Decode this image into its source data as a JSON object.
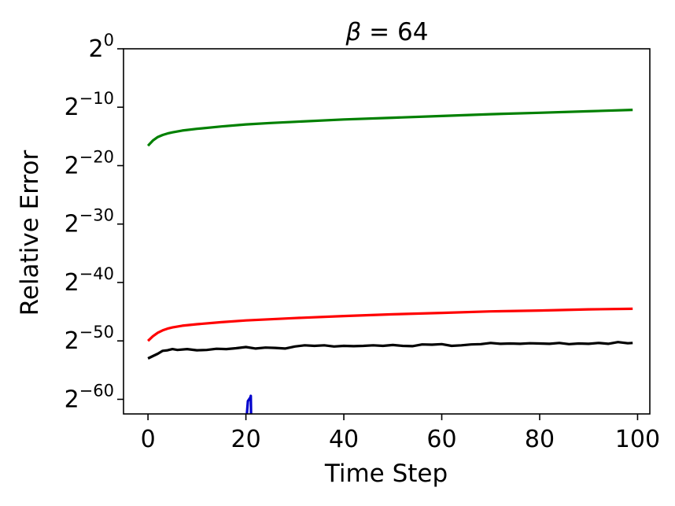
{
  "chart_data": {
    "type": "line",
    "title_symbol": "β",
    "title_rest": " = 64",
    "xlabel": "Time Step",
    "ylabel": "Relative Error",
    "xlim": [
      -5,
      102.5
    ],
    "ylim_log2": [
      -62.5,
      0
    ],
    "x_ticks": [
      0,
      20,
      40,
      60,
      80,
      100
    ],
    "x_tick_labels": [
      "0",
      "20",
      "40",
      "60",
      "80",
      "100"
    ],
    "y_ticks_log2": [
      0,
      -10,
      -20,
      -30,
      -40,
      -50,
      -60
    ],
    "y_tick_base": "2",
    "y_tick_exponents": [
      "0",
      "−10",
      "−20",
      "−30",
      "−40",
      "−50",
      "−60"
    ],
    "grid": false,
    "legend": "none",
    "series": [
      {
        "color": "#008000",
        "x": [
          0,
          1,
          2,
          3,
          4,
          5,
          7,
          10,
          15,
          20,
          25,
          30,
          40,
          50,
          60,
          70,
          80,
          90,
          99
        ],
        "log2y": [
          -16.6,
          -15.7,
          -15.1,
          -14.75,
          -14.5,
          -14.3,
          -14.0,
          -13.7,
          -13.3,
          -12.95,
          -12.7,
          -12.5,
          -12.1,
          -11.8,
          -11.5,
          -11.2,
          -10.95,
          -10.7,
          -10.45
        ]
      },
      {
        "color": "#ff0000",
        "x": [
          0,
          1,
          2,
          3,
          4,
          5,
          7,
          10,
          15,
          20,
          25,
          30,
          40,
          50,
          60,
          70,
          80,
          90,
          99
        ],
        "log2y": [
          -50.0,
          -49.2,
          -48.6,
          -48.2,
          -47.9,
          -47.7,
          -47.4,
          -47.15,
          -46.8,
          -46.5,
          -46.3,
          -46.1,
          -45.75,
          -45.45,
          -45.2,
          -44.95,
          -44.8,
          -44.6,
          -44.5
        ]
      },
      {
        "color": "#000000",
        "x": [
          0,
          1,
          2,
          3,
          4,
          5,
          6,
          8,
          10,
          12,
          14,
          16,
          18,
          20,
          22,
          24,
          26,
          28,
          30,
          32,
          34,
          36,
          38,
          40,
          42,
          44,
          46,
          48,
          50,
          52,
          54,
          56,
          58,
          60,
          62,
          64,
          66,
          68,
          70,
          72,
          74,
          76,
          78,
          80,
          82,
          84,
          86,
          88,
          90,
          92,
          94,
          96,
          98,
          99
        ],
        "log2y": [
          -53.0,
          -52.6,
          -52.2,
          -51.7,
          -51.6,
          -51.4,
          -51.55,
          -51.4,
          -51.6,
          -51.55,
          -51.35,
          -51.4,
          -51.25,
          -51.05,
          -51.3,
          -51.15,
          -51.2,
          -51.3,
          -50.95,
          -50.75,
          -50.85,
          -50.75,
          -50.95,
          -50.85,
          -50.9,
          -50.85,
          -50.75,
          -50.85,
          -50.7,
          -50.85,
          -50.9,
          -50.6,
          -50.65,
          -50.55,
          -50.85,
          -50.75,
          -50.6,
          -50.55,
          -50.35,
          -50.5,
          -50.45,
          -50.5,
          -50.4,
          -50.45,
          -50.5,
          -50.35,
          -50.55,
          -50.45,
          -50.5,
          -50.35,
          -50.5,
          -50.2,
          -50.4,
          -50.35
        ]
      },
      {
        "color": "#0000cc",
        "x": [
          20.2,
          20.4,
          20.9,
          21.0,
          21.05
        ],
        "log2y": [
          -62.5,
          -60.3,
          -59.7,
          -59.4,
          -62.5
        ]
      }
    ]
  }
}
